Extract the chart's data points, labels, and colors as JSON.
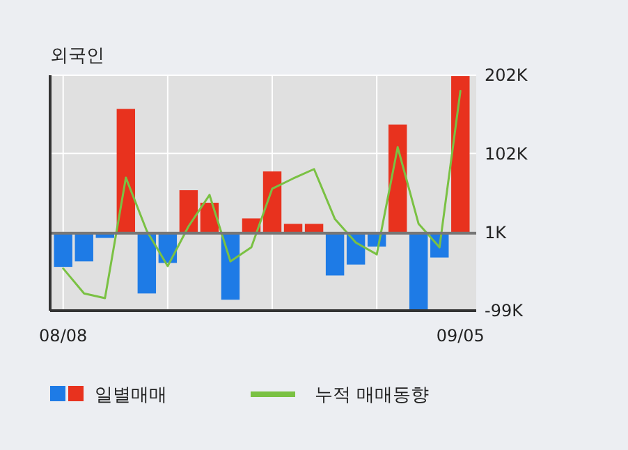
{
  "chart_data": {
    "type": "bar",
    "title": "외국인",
    "categories": [
      "08/08",
      null,
      null,
      null,
      null,
      null,
      null,
      null,
      null,
      null,
      null,
      null,
      null,
      null,
      null,
      null,
      null,
      null,
      null,
      "09/05"
    ],
    "series": [
      {
        "name": "일별매매",
        "values": [
          -43000,
          -36000,
          -6000,
          159000,
          -77000,
          -38000,
          55000,
          39000,
          -85000,
          19000,
          79000,
          12000,
          12000,
          -54000,
          -40000,
          -17000,
          139000,
          -98000,
          -31000,
          201000
        ],
        "colors": [
          "#1e7be6",
          "#1e7be6",
          "#1e7be6",
          "#e8321e",
          "#1e7be6",
          "#1e7be6",
          "#e8321e",
          "#e8321e",
          "#1e7be6",
          "#e8321e",
          "#e8321e",
          "#e8321e",
          "#e8321e",
          "#1e7be6",
          "#1e7be6",
          "#1e7be6",
          "#e8321e",
          "#1e7be6",
          "#1e7be6",
          "#e8321e"
        ]
      },
      {
        "name": "누적 매매동향",
        "type": "line",
        "color": "#7ac143",
        "values": [
          -45000,
          -77000,
          -83000,
          71000,
          3000,
          -42000,
          9000,
          49000,
          -36000,
          -18000,
          57000,
          70000,
          82000,
          18000,
          -12000,
          -27000,
          110000,
          12000,
          -18000,
          182000
        ]
      }
    ],
    "ylim": [
      -99000,
      202000
    ],
    "yticks": [
      {
        "value": -99000,
        "label": "-99K"
      },
      {
        "value": 1000,
        "label": "1K"
      },
      {
        "value": 102000,
        "label": "102K"
      },
      {
        "value": 202000,
        "label": "202K"
      }
    ],
    "grid": true,
    "legend": "bottom"
  }
}
